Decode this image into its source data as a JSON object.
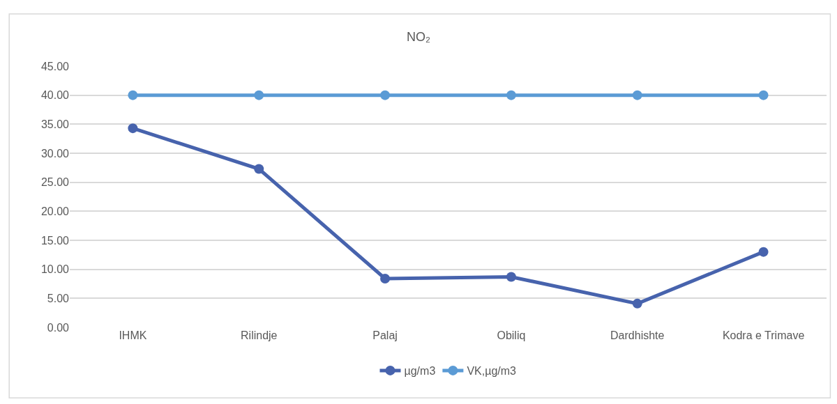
{
  "chart_data": {
    "type": "line",
    "title": "NO₂",
    "categories": [
      "IHMK",
      "Rilindje",
      "Palaj",
      "Obiliq",
      "Dardhishte",
      "Kodra e Trimave"
    ],
    "series": [
      {
        "name": "µg/m3",
        "color": "#4763ad",
        "values": [
          34.3,
          27.3,
          8.4,
          8.7,
          4.1,
          13.0
        ]
      },
      {
        "name": "VK,µg/m3",
        "color": "#5b9bd5",
        "values": [
          40,
          40,
          40,
          40,
          40,
          40
        ]
      }
    ],
    "ylim": [
      0,
      45
    ],
    "yticks": [
      {
        "value": 0,
        "label": "0.00"
      },
      {
        "value": 5,
        "label": "5.00"
      },
      {
        "value": 10,
        "label": "10.00"
      },
      {
        "value": 15,
        "label": "15.00"
      },
      {
        "value": 20,
        "label": "20.00"
      },
      {
        "value": 25,
        "label": "25.00"
      },
      {
        "value": 30,
        "label": "30.00"
      },
      {
        "value": 35,
        "label": "35.00"
      },
      {
        "value": 40,
        "label": "40.00"
      },
      {
        "value": 45,
        "label": "45.00"
      }
    ],
    "grid": "y",
    "legend": "bottom",
    "marker": "circle",
    "line_style": "solid"
  }
}
